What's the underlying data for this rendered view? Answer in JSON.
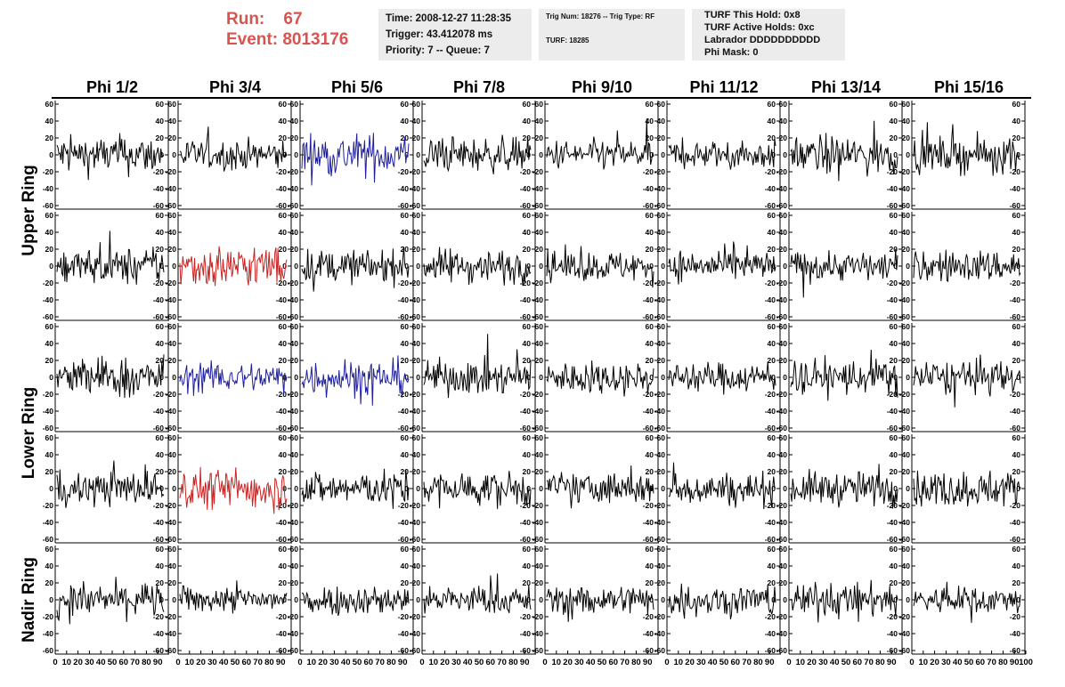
{
  "header": {
    "run_label": "Run:",
    "run_value": "67",
    "event_label": "Event:",
    "event_value": "8013176",
    "time": "Time: 2008-12-27 11:28:35",
    "trigger": "Trigger: 43.412078 ms",
    "priority": "Priority: 7 -- Queue: 7",
    "trig_num": "Trig Num: 18276 -- Trig Type: RF",
    "turf": "TURF: 18285",
    "turf_hold": "TURF This Hold: 0x8",
    "turf_active": "TURF Active Holds: 0xc",
    "labrador": "Labrador DDDDDDDDDD",
    "phi_mask": "Phi Mask: 0"
  },
  "chart_data": {
    "type": "line",
    "columns": [
      "Phi 1/2",
      "Phi 3/4",
      "Phi 5/6",
      "Phi 7/8",
      "Phi 9/10",
      "Phi 11/12",
      "Phi 13/14",
      "Phi 15/16"
    ],
    "ring_labels": [
      "Upper Ring",
      "Lower Ring",
      "Nadir Ring"
    ],
    "ylim": [
      -60,
      60
    ],
    "xlim": [
      0,
      100
    ],
    "yticks": [
      -60,
      -40,
      -20,
      0,
      20,
      40,
      60
    ],
    "xticks": [
      0,
      10,
      20,
      30,
      40,
      50,
      60,
      70,
      80,
      90,
      100
    ],
    "colors": {
      "normal": "#000000",
      "highlight_blue": "#1f1f9e",
      "highlight_red": "#cc2222"
    },
    "rows": [
      {
        "ring": "Upper Ring",
        "colors": [
          "normal",
          "normal",
          "highlight_blue",
          "normal",
          "normal",
          "normal",
          "normal",
          "normal"
        ],
        "amplitude": [
          18,
          14,
          20,
          16,
          14,
          13,
          18,
          16
        ]
      },
      {
        "ring": "Upper Ring",
        "colors": [
          "normal",
          "highlight_red",
          "normal",
          "normal",
          "normal",
          "normal",
          "normal",
          "normal"
        ],
        "amplitude": [
          17,
          20,
          15,
          16,
          14,
          14,
          14,
          15
        ]
      },
      {
        "ring": "Lower Ring",
        "colors": [
          "normal",
          "highlight_blue",
          "highlight_blue",
          "normal",
          "normal",
          "normal",
          "normal",
          "normal"
        ],
        "amplitude": [
          19,
          14,
          17,
          16,
          15,
          14,
          17,
          16
        ]
      },
      {
        "ring": "Lower Ring",
        "colors": [
          "normal",
          "highlight_red",
          "normal",
          "normal",
          "normal",
          "normal",
          "normal",
          "normal"
        ],
        "amplitude": [
          16,
          19,
          16,
          16,
          15,
          15,
          16,
          17
        ]
      },
      {
        "ring": "Nadir Ring",
        "colors": [
          "normal",
          "normal",
          "normal",
          "normal",
          "normal",
          "normal",
          "normal",
          "normal"
        ],
        "amplitude": [
          16,
          12,
          14,
          13,
          14,
          15,
          16,
          13
        ]
      }
    ]
  }
}
